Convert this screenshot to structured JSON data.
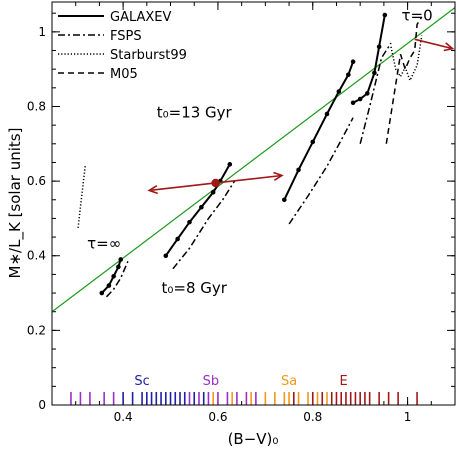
{
  "chart_data": {
    "type": "line",
    "xlabel": "(B−V)₀",
    "ylabel": "M∗/L_K [solar units]",
    "xlim": [
      0.25,
      1.1
    ],
    "ylim": [
      0.0,
      1.08
    ],
    "xticks": [
      0.4,
      0.6,
      0.8,
      1.0
    ],
    "yticks": [
      0,
      0.2,
      0.4,
      0.6,
      0.8,
      1.0
    ],
    "tick_labels_x": [
      "0.4",
      "0.6",
      "0.8",
      "1"
    ],
    "tick_labels_y": [
      "0",
      "0.2",
      "0.4",
      "0.6",
      "0.8",
      "1"
    ],
    "legend": {
      "placement": "top-left",
      "entries": [
        {
          "name": "GALAXEV",
          "style": "solid"
        },
        {
          "name": "FSPS",
          "style": "dash-dot"
        },
        {
          "name": "Starburst99",
          "style": "dotted"
        },
        {
          "name": "M05",
          "style": "dashed"
        }
      ]
    },
    "annotations": [
      {
        "text": "τ=0",
        "x": 1.02,
        "y": 1.03
      },
      {
        "text": "τ=∞",
        "x": 0.36,
        "y": 0.42
      },
      {
        "text": "t₀=13 Gyr",
        "x": 0.55,
        "y": 0.77
      },
      {
        "text": "t₀=8 Gyr",
        "x": 0.55,
        "y": 0.3
      }
    ],
    "fit_line": {
      "x": [
        0.25,
        1.1
      ],
      "y": [
        0.25,
        1.065
      ],
      "color": "#1a9a1a"
    },
    "highlight_point": {
      "x": 0.595,
      "y": 0.595,
      "color": "#a01818"
    },
    "arrows": [
      {
        "from": [
          0.595,
          0.595
        ],
        "to": [
          0.455,
          0.575
        ]
      },
      {
        "from": [
          0.595,
          0.595
        ],
        "to": [
          0.735,
          0.615
        ]
      },
      {
        "from": [
          1.015,
          0.98
        ],
        "to": [
          1.095,
          0.955
        ]
      }
    ],
    "series": [
      {
        "name": "GALAXEV",
        "style": "solid",
        "x": [
          0.355,
          0.37,
          0.38,
          0.39,
          0.395
        ],
        "y": [
          0.3,
          0.32,
          0.345,
          0.37,
          0.39
        ],
        "points": true
      },
      {
        "name": "GALAXEV",
        "style": "solid",
        "x": [
          0.49,
          0.515,
          0.54,
          0.565,
          0.59,
          0.605,
          0.625
        ],
        "y": [
          0.4,
          0.445,
          0.49,
          0.53,
          0.57,
          0.6,
          0.645
        ],
        "points": true
      },
      {
        "name": "GALAXEV",
        "style": "solid",
        "x": [
          0.74,
          0.77,
          0.8,
          0.83,
          0.855,
          0.875,
          0.885
        ],
        "y": [
          0.55,
          0.63,
          0.705,
          0.78,
          0.84,
          0.885,
          0.92
        ],
        "points": true
      },
      {
        "name": "GALAXEV",
        "style": "solid",
        "x": [
          0.885,
          0.9,
          0.915,
          0.93,
          0.94,
          0.952
        ],
        "y": [
          0.81,
          0.82,
          0.835,
          0.89,
          0.96,
          1.045
        ],
        "points": true
      },
      {
        "name": "FSPS",
        "style": "dash-dot",
        "x": [
          0.365,
          0.38,
          0.395,
          0.41
        ],
        "y": [
          0.29,
          0.31,
          0.34,
          0.385
        ]
      },
      {
        "name": "FSPS",
        "style": "dash-dot",
        "x": [
          0.505,
          0.54,
          0.58,
          0.61,
          0.635
        ],
        "y": [
          0.365,
          0.42,
          0.5,
          0.55,
          0.6
        ]
      },
      {
        "name": "FSPS",
        "style": "dash-dot",
        "x": [
          0.75,
          0.79,
          0.83,
          0.86,
          0.885
        ],
        "y": [
          0.485,
          0.56,
          0.64,
          0.71,
          0.77
        ]
      },
      {
        "name": "FSPS",
        "style": "dash-dot",
        "x": [
          0.9,
          0.92,
          0.945,
          0.965
        ],
        "y": [
          0.7,
          0.8,
          0.93,
          0.97
        ]
      },
      {
        "name": "Starburst99",
        "style": "dotted",
        "x": [
          0.305,
          0.31,
          0.315,
          0.32
        ],
        "y": [
          0.475,
          0.53,
          0.585,
          0.64
        ]
      },
      {
        "name": "Starburst99",
        "style": "dotted",
        "x": [
          0.965,
          0.975,
          0.985,
          0.995,
          1.005,
          1.02,
          1.03
        ],
        "y": [
          0.96,
          0.9,
          0.88,
          0.905,
          0.87,
          0.91,
          0.99
        ]
      },
      {
        "name": "M05",
        "style": "dashed",
        "x": [
          0.955,
          0.97,
          0.985,
          0.995,
          1.005,
          1.015,
          1.02,
          1.03
        ],
        "y": [
          0.7,
          0.82,
          0.94,
          0.9,
          0.93,
          0.95,
          1.02,
          1.04
        ]
      }
    ],
    "rug": {
      "labels": [
        {
          "text": "Sc",
          "x": 0.44,
          "color": "#1f1fa8"
        },
        {
          "text": "Sb",
          "x": 0.585,
          "color": "#9a30c8"
        },
        {
          "text": "Sa",
          "x": 0.75,
          "color": "#f09a18"
        },
        {
          "text": "E",
          "x": 0.865,
          "color": "#a01818"
        }
      ],
      "groups": [
        {
          "color": "#9a30c8",
          "x": [
            0.29,
            0.31,
            0.33,
            0.36,
            0.38
          ]
        },
        {
          "color": "#1f1fa8",
          "x": [
            0.4,
            0.42,
            0.44,
            0.45,
            0.46,
            0.47,
            0.48,
            0.49,
            0.5,
            0.51,
            0.52,
            0.53,
            0.55,
            0.57
          ]
        },
        {
          "color": "#9a30c8",
          "x": [
            0.54,
            0.56,
            0.58,
            0.6,
            0.62,
            0.64,
            0.66,
            0.68
          ]
        },
        {
          "color": "#f09a18",
          "x": [
            0.59,
            0.63,
            0.67,
            0.7,
            0.72,
            0.74,
            0.75,
            0.77,
            0.79,
            0.81,
            0.83
          ]
        },
        {
          "color": "#a01818",
          "x": [
            0.76,
            0.8,
            0.82,
            0.84,
            0.85,
            0.86,
            0.87,
            0.88,
            0.89,
            0.9,
            0.91,
            0.92,
            0.94,
            0.96,
            0.98,
            1.02
          ]
        }
      ]
    }
  }
}
